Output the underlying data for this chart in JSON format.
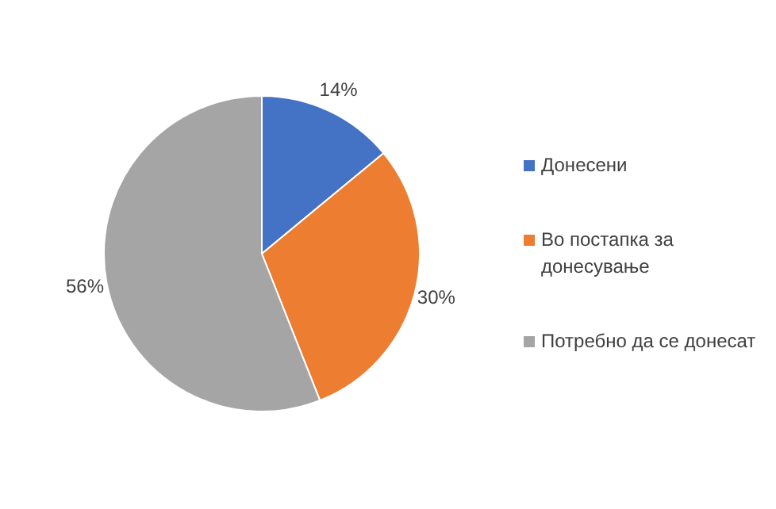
{
  "chart_data": {
    "type": "pie",
    "categories": [
      "Донесени",
      "Во постапка за донесување",
      "Потребно да се донесат"
    ],
    "values": [
      14,
      30,
      56
    ],
    "colors": [
      "#4472c4",
      "#ed7d31",
      "#a5a5a5"
    ],
    "value_labels": [
      "14%",
      "30%",
      "56%"
    ],
    "legend": "right"
  }
}
